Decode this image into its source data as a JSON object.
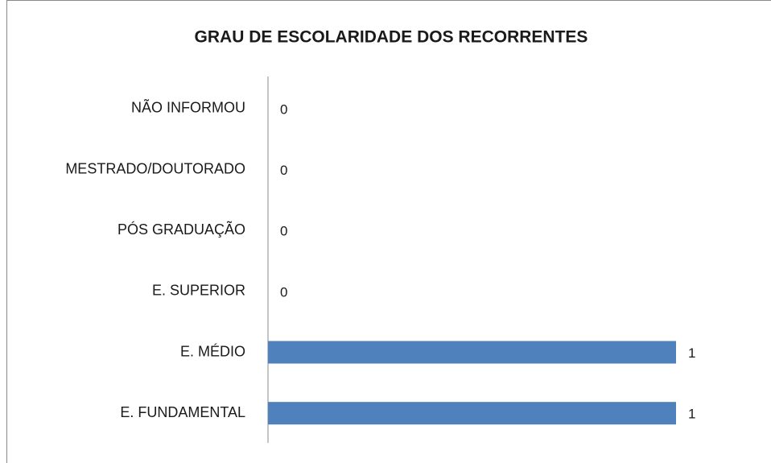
{
  "chart_data": {
    "type": "bar",
    "orientation": "horizontal",
    "title": "GRAU DE ESCOLARIDADE DOS RECORRENTES",
    "categories": [
      "NÃO INFORMOU",
      "MESTRADO/DOUTORADO",
      "PÓS GRADUAÇÃO",
      "E. SUPERIOR",
      "E. MÉDIO",
      "E. FUNDAMENTAL"
    ],
    "values": [
      0,
      0,
      0,
      0,
      1,
      1
    ],
    "color": "#4f81bd"
  }
}
